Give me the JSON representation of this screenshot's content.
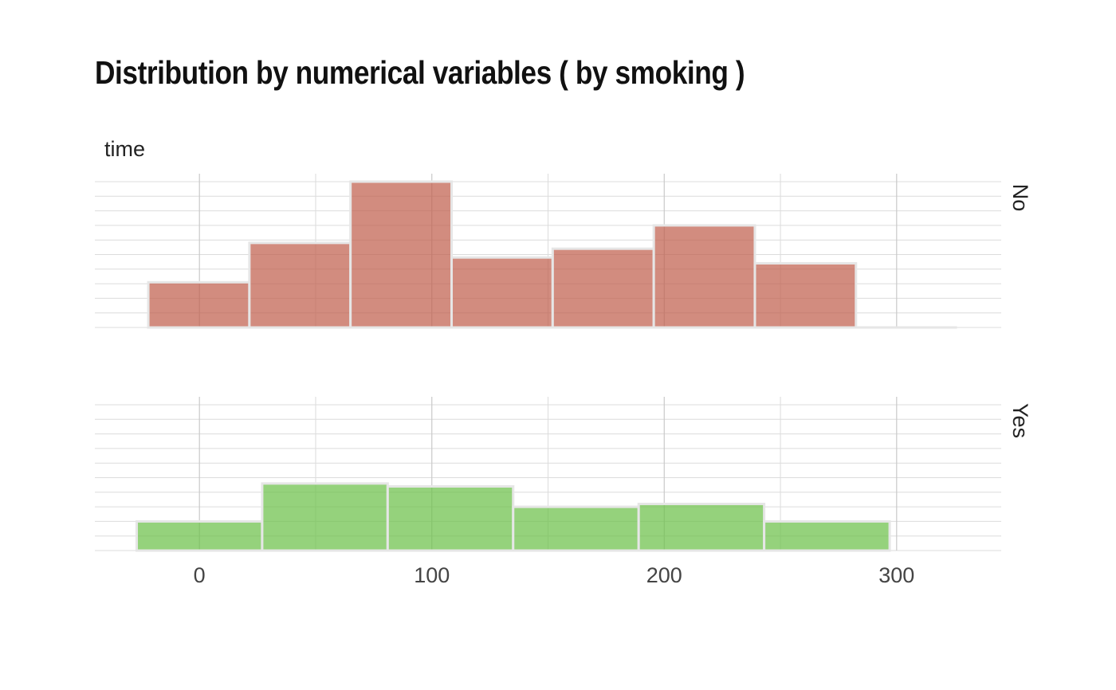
{
  "chart_data": {
    "type": "bar",
    "title": "Distribution by numerical variables ( by smoking )",
    "variable_label": "time",
    "xlabel": "",
    "ylabel": "",
    "xlim": [
      -45,
      345
    ],
    "x_ticks": [
      0,
      100,
      200,
      300
    ],
    "x_minor": [
      50,
      150,
      250
    ],
    "grid": true,
    "y_gridlines": 11,
    "facets": [
      {
        "name": "No",
        "color": "#c1604e",
        "ylim": [
          0,
          10
        ],
        "bins": [
          {
            "start": -22,
            "end": 21.5,
            "value": 3.1
          },
          {
            "start": 21.5,
            "end": 65,
            "value": 5.8
          },
          {
            "start": 65,
            "end": 108.5,
            "value": 10
          },
          {
            "start": 108.5,
            "end": 152,
            "value": 4.8
          },
          {
            "start": 152,
            "end": 195.5,
            "value": 5.4
          },
          {
            "start": 195.5,
            "end": 239,
            "value": 7.0
          },
          {
            "start": 239,
            "end": 282.5,
            "value": 4.4
          },
          {
            "start": 282.5,
            "end": 326,
            "value": 0
          }
        ]
      },
      {
        "name": "Yes",
        "color": "#6cc04a",
        "ylim": [
          0,
          10
        ],
        "bins": [
          {
            "start": -27,
            "end": 27,
            "value": 2.0
          },
          {
            "start": 27,
            "end": 81,
            "value": 4.6
          },
          {
            "start": 81,
            "end": 135,
            "value": 4.4
          },
          {
            "start": 135,
            "end": 189,
            "value": 3.0
          },
          {
            "start": 189,
            "end": 243,
            "value": 3.2
          },
          {
            "start": 243,
            "end": 297,
            "value": 2.0
          }
        ]
      }
    ]
  }
}
